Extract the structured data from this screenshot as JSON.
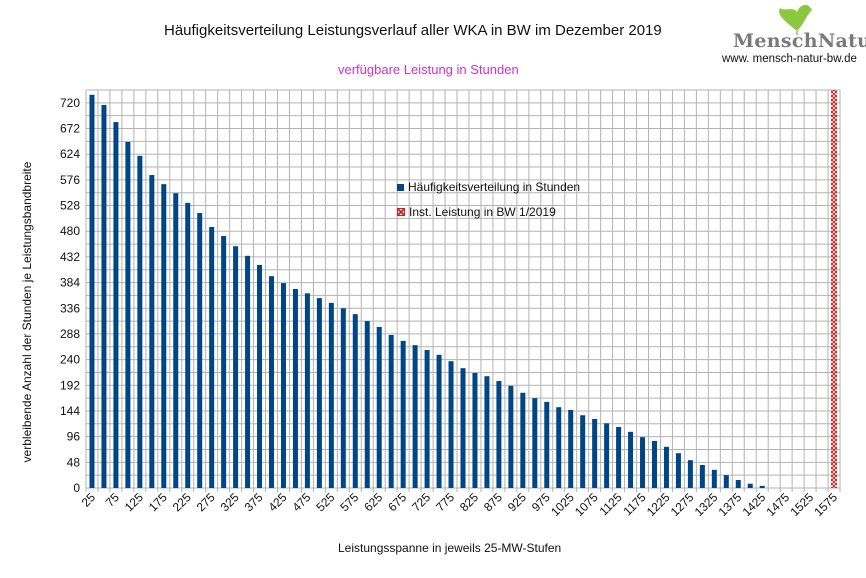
{
  "header": {
    "logo_text": "MenschNatur",
    "logo_url": "www. mensch-natur-bw.de"
  },
  "colors": {
    "bars": "#004586",
    "inst": "#c9211e",
    "grid": "#b3b3b3",
    "subtitle": "#cc33cc",
    "leaf": "#8dc63f"
  },
  "chart_data": {
    "type": "bar",
    "title": "Häufigkeitsverteilung Leistungsverlauf aller WKA in BW im Dezember 2019",
    "subtitle": "verfügbare Leistung in Stunden",
    "xlabel": "Leistungsspanne in jeweils 25-MW-Stufen",
    "ylabel": "verbleibende Anzahl der Stunden je Leistungsbandbreite",
    "ylim": [
      0,
      744
    ],
    "yticks": [
      0,
      48,
      96,
      144,
      192,
      240,
      288,
      336,
      384,
      432,
      480,
      528,
      576,
      624,
      672,
      720
    ],
    "xtick_labels": [
      "25",
      "75",
      "125",
      "175",
      "225",
      "275",
      "325",
      "375",
      "425",
      "475",
      "525",
      "575",
      "625",
      "675",
      "725",
      "775",
      "825",
      "875",
      "925",
      "975",
      "1025",
      "1075",
      "1125",
      "1175",
      "1225",
      "1275",
      "1325",
      "1375",
      "1425",
      "1475",
      "1525",
      "1575"
    ],
    "grid": true,
    "legend_placement": "center",
    "categories": [
      25,
      50,
      75,
      100,
      125,
      150,
      175,
      200,
      225,
      250,
      275,
      300,
      325,
      350,
      375,
      400,
      425,
      450,
      475,
      500,
      525,
      550,
      575,
      600,
      625,
      650,
      675,
      700,
      725,
      750,
      775,
      800,
      825,
      850,
      875,
      900,
      925,
      950,
      975,
      1000,
      1025,
      1050,
      1075,
      1100,
      1125,
      1150,
      1175,
      1200,
      1225,
      1250,
      1275,
      1300,
      1325,
      1350,
      1375,
      1400,
      1425,
      1450,
      1475,
      1500,
      1525,
      1550,
      1575
    ],
    "series": [
      {
        "name": "Häufigkeitsverteilung in Stunden",
        "values": [
          735,
          716,
          684,
          647,
          621,
          585,
          568,
          551,
          533,
          514,
          488,
          471,
          452,
          434,
          417,
          396,
          383,
          372,
          364,
          355,
          346,
          336,
          325,
          312,
          301,
          286,
          275,
          267,
          258,
          249,
          237,
          224,
          215,
          209,
          200,
          191,
          178,
          168,
          161,
          151,
          146,
          136,
          129,
          121,
          114,
          105,
          95,
          88,
          77,
          65,
          52,
          43,
          34,
          24,
          15,
          8,
          4,
          0,
          0,
          0,
          0,
          0,
          0
        ]
      },
      {
        "name": "Inst. Leistung in BW 1/2019",
        "category": 1575,
        "value": 744
      }
    ]
  }
}
